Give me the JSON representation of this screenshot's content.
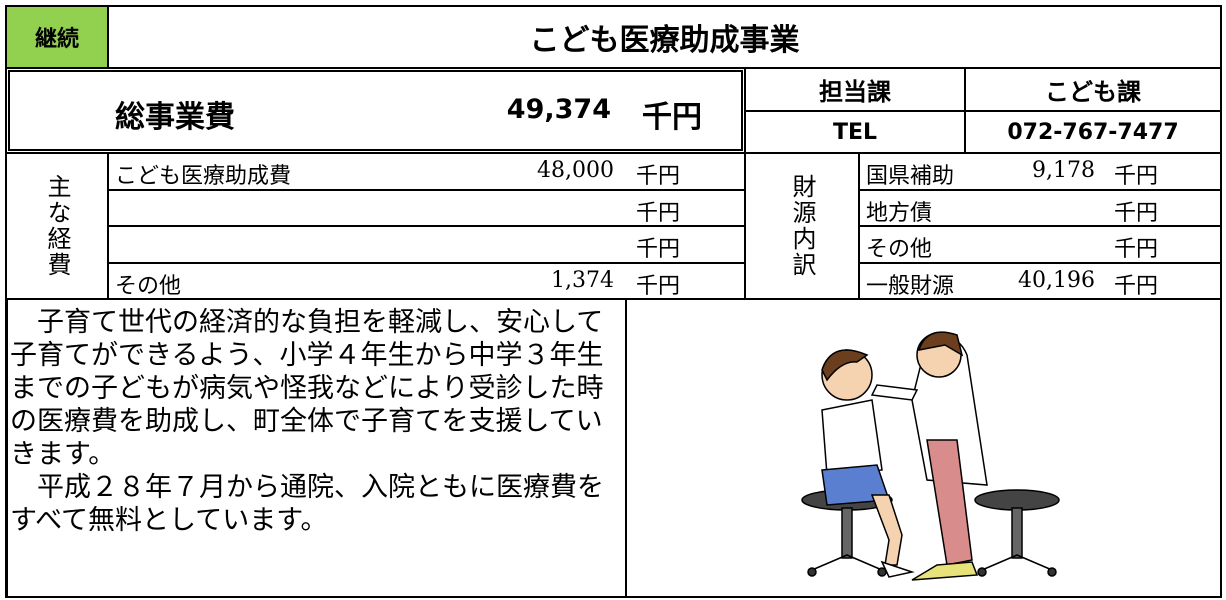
{
  "header": {
    "status": "継続",
    "title": "こども医療助成事業"
  },
  "total": {
    "label": "総事業費",
    "amount": "49,374",
    "unit": "千円"
  },
  "department": {
    "label": "担当課",
    "name": "こども課",
    "tel_label": "TEL",
    "tel": "072-767-7477"
  },
  "expenses": {
    "label": "主な経費",
    "items": [
      {
        "name": "こども医療助成費",
        "amount": "48,000",
        "unit": "千円"
      },
      {
        "unit": "千円"
      },
      {
        "unit": "千円"
      },
      {
        "name": "その他",
        "amount": "1,374",
        "unit": "千円"
      }
    ]
  },
  "funding": {
    "label": "財源内訳",
    "items": [
      {
        "name": "国県補助",
        "amount": "9,178",
        "unit": "千円"
      },
      {
        "name": "地方債",
        "unit": "千円"
      },
      {
        "name": "その他",
        "unit": "千円"
      },
      {
        "name": "一般財源",
        "amount": "40,196",
        "unit": "千円"
      }
    ]
  },
  "description": {
    "paragraphs": [
      "子育て世代の経済的な負担を軽減し、安心して子育てができるよう、小学４年生から中学３年生までの子どもが病気や怪我などにより受診した時の医療費を助成し、町全体で子育てを支援していきます。",
      "平成２８年７月から通院、入院ともに医療費をすべて無料としています。"
    ]
  }
}
